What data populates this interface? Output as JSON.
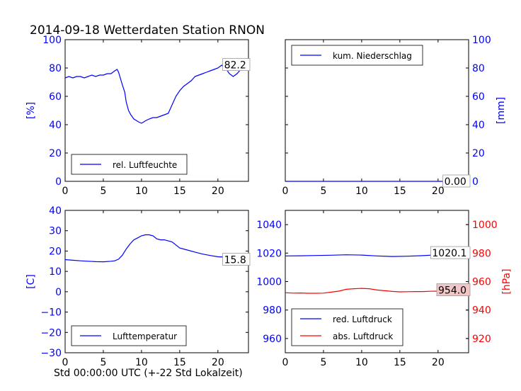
{
  "figure": {
    "title": "2014-09-18 Wetterdaten Station RNON",
    "xlabel": "Std 00:00:00 UTC (+-22 Std Lokalzeit)"
  },
  "colors": {
    "blue": "#0000ff",
    "red": "#ff0000",
    "label_box": "#f2c6c6"
  },
  "chart_data": [
    {
      "type": "line",
      "title": "",
      "xlabel": "",
      "ylabel": "[%]",
      "xlim": [
        0,
        24
      ],
      "ylim": [
        0,
        100
      ],
      "xticks": [
        "0",
        "5",
        "10",
        "15",
        "20"
      ],
      "yticks": [
        "0",
        "20",
        "40",
        "60",
        "80",
        "100"
      ],
      "legend_position": "lower-left",
      "last_value_label": "82.2",
      "series": [
        {
          "name": "rel. Luftfeuchte",
          "color": "#0000ff",
          "x": [
            0,
            0.5,
            1,
            1.5,
            2,
            2.5,
            3,
            3.5,
            4,
            4.5,
            5,
            5.5,
            6,
            6.5,
            6.8,
            7,
            7.5,
            7.8,
            8,
            8.3,
            8.6,
            9,
            9.3,
            9.6,
            10,
            10.3,
            10.6,
            11,
            11.5,
            12,
            12.5,
            13,
            13.5,
            14,
            14.5,
            15,
            15.5,
            16,
            16.5,
            17,
            17.5,
            18,
            18.5,
            19,
            19.5,
            20,
            20.5,
            21,
            21.5,
            22,
            22.5,
            23,
            23.5,
            24
          ],
          "y": [
            73,
            74,
            73,
            74,
            74,
            73,
            74,
            75,
            74,
            75,
            75,
            76,
            76,
            78,
            79,
            77,
            68,
            63,
            56,
            50,
            47,
            44,
            43,
            42,
            41,
            42,
            43,
            44,
            45,
            45,
            46,
            47,
            48,
            54,
            60,
            64,
            67,
            69,
            71,
            74,
            75,
            76,
            77,
            78,
            79,
            80,
            82,
            80,
            76,
            74,
            76,
            79,
            81,
            82.2
          ]
        }
      ]
    },
    {
      "type": "line",
      "title": "",
      "xlabel": "",
      "ylabel": "[mm]",
      "xlim": [
        0,
        24
      ],
      "ylim": [
        0,
        100
      ],
      "xticks": [
        "0",
        "5",
        "10",
        "15",
        "20"
      ],
      "yticks": [
        "0",
        "20",
        "40",
        "60",
        "80",
        "100"
      ],
      "legend_position": "upper-left",
      "last_value_label": "0.00",
      "series": [
        {
          "name": "kum. Niederschlag",
          "color": "#0000ff",
          "x": [
            0,
            24
          ],
          "y": [
            0,
            0
          ]
        }
      ]
    },
    {
      "type": "line",
      "title": "",
      "xlabel": "",
      "ylabel": "[C]",
      "xlim": [
        0,
        24
      ],
      "ylim": [
        -30,
        40
      ],
      "xticks": [
        "0",
        "5",
        "10",
        "15",
        "20"
      ],
      "yticks": [
        "−30",
        "−20",
        "−10",
        "0",
        "10",
        "20",
        "30",
        "40"
      ],
      "legend_position": "lower-left",
      "last_value_label": "15.8",
      "series": [
        {
          "name": "Lufttemperatur",
          "color": "#0000ff",
          "x": [
            0,
            1,
            2,
            3,
            4,
            5,
            6,
            6.5,
            7,
            7.5,
            8,
            8.5,
            9,
            9.5,
            10,
            10.5,
            11,
            11.5,
            12,
            12.5,
            13,
            13.5,
            14,
            14.5,
            15,
            16,
            17,
            18,
            19,
            20,
            21,
            22,
            23,
            24
          ],
          "y": [
            15.8,
            15.5,
            15.2,
            15,
            14.8,
            14.7,
            15,
            15.2,
            16,
            18,
            21,
            23.5,
            25.5,
            26.5,
            27.5,
            28,
            28,
            27.5,
            26,
            25.5,
            25.5,
            25,
            24.5,
            23,
            21.5,
            20.5,
            19.5,
            18.5,
            17.8,
            17.2,
            17,
            16.5,
            16,
            15.8
          ]
        }
      ]
    },
    {
      "type": "line",
      "title": "",
      "xlabel": "",
      "ylabel": "[hPa]",
      "xlim": [
        0,
        24
      ],
      "ylim": [
        950,
        1050
      ],
      "ylim_right": [
        910,
        1010
      ],
      "xticks": [
        "0",
        "5",
        "10",
        "15",
        "20"
      ],
      "yticks": [
        "960",
        "980",
        "1000",
        "1020",
        "1040"
      ],
      "yticks_right": [
        "920",
        "940",
        "960",
        "980",
        "1000"
      ],
      "legend_position": "lower-left",
      "last_value_label": "1020.1",
      "last_value_label_2": "954.0",
      "series": [
        {
          "name": "red. Luftdruck",
          "color": "#0000ff",
          "axis": "left",
          "x": [
            0,
            2,
            4,
            6,
            8,
            10,
            12,
            14,
            16,
            18,
            20,
            22,
            24
          ],
          "y": [
            1018.0,
            1018.1,
            1018.3,
            1018.5,
            1018.8,
            1018.6,
            1018.0,
            1017.6,
            1017.8,
            1018.2,
            1018.8,
            1019.5,
            1020.1
          ]
        },
        {
          "name": "abs. Luftdruck",
          "color": "#ff0000",
          "axis": "right",
          "x": [
            0,
            1,
            2,
            3,
            4,
            5,
            6,
            7,
            8,
            9,
            10,
            11,
            12,
            13,
            14,
            15,
            16,
            17,
            18,
            19,
            20,
            21,
            22,
            23,
            24
          ],
          "y": [
            952.2,
            951.9,
            952.0,
            951.8,
            951.8,
            951.9,
            952.6,
            953.3,
            954.6,
            955.0,
            955.2,
            955.0,
            954.1,
            953.6,
            953.1,
            952.8,
            952.9,
            953.0,
            953.0,
            953.2,
            953.3,
            953.5,
            953.7,
            953.9,
            954.0
          ]
        }
      ]
    }
  ]
}
